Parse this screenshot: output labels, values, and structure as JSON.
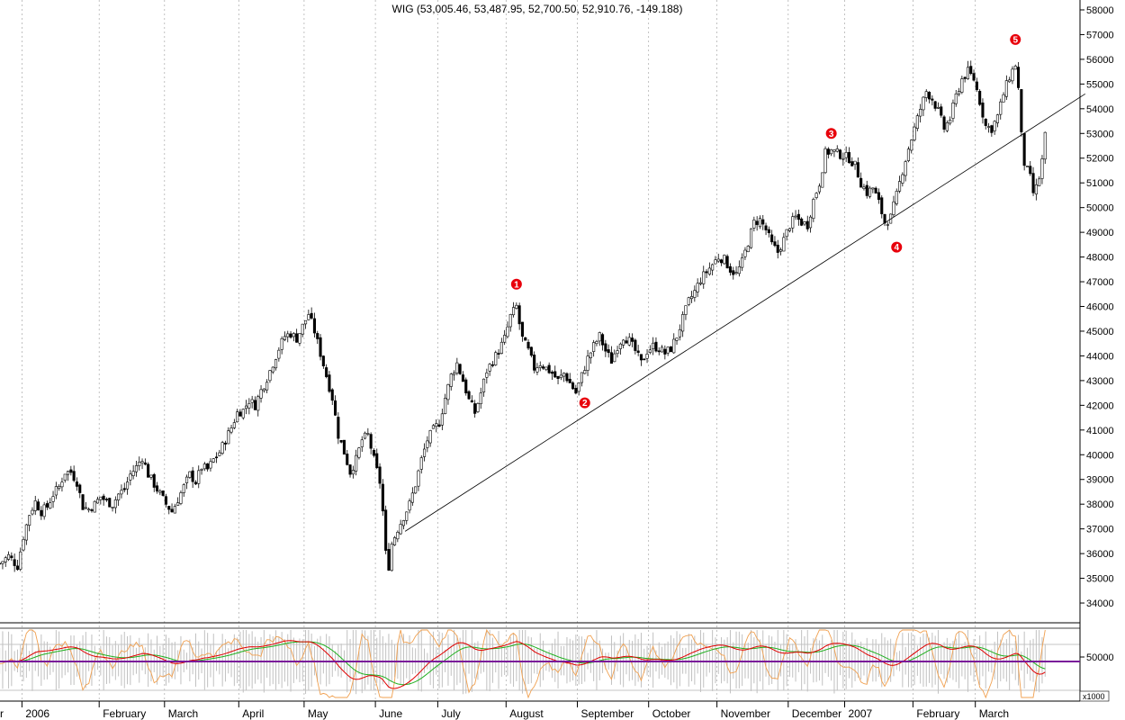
{
  "chart_data": {
    "type": "candlestick",
    "title": "WIG (53,005.46, 53,487.95, 52,700.50, 52,910.76, -149.188)",
    "price_axis": {
      "ylim": [
        33200,
        58400
      ],
      "ticks": [
        34000,
        35000,
        36000,
        37000,
        38000,
        39000,
        40000,
        41000,
        42000,
        43000,
        44000,
        45000,
        46000,
        47000,
        48000,
        49000,
        50000,
        51000,
        52000,
        53000,
        54000,
        55000,
        56000,
        57000,
        58000
      ],
      "tick_labels": [
        "34000",
        "35000",
        "36000",
        "37000",
        "38000",
        "39000",
        "40000",
        "41000",
        "42000",
        "43000",
        "44000",
        "45000",
        "46000",
        "47000",
        "48000",
        "49000",
        "50000",
        "51000",
        "52000",
        "53000",
        "54000",
        "55000",
        "56000",
        "57000",
        "58000"
      ]
    },
    "indicator_axis": {
      "tick_label": "50000",
      "multiplier_label": "x1000"
    },
    "months": [
      {
        "label": "r",
        "bar": 0
      },
      {
        "label": "2006",
        "bar": 8
      },
      {
        "label": "February",
        "bar": 34
      },
      {
        "label": "March",
        "bar": 56
      },
      {
        "label": "April",
        "bar": 81
      },
      {
        "label": "May",
        "bar": 103
      },
      {
        "label": "June",
        "bar": 127
      },
      {
        "label": "July",
        "bar": 148
      },
      {
        "label": "August",
        "bar": 171
      },
      {
        "label": "September",
        "bar": 195
      },
      {
        "label": "October",
        "bar": 219
      },
      {
        "label": "November",
        "bar": 242
      },
      {
        "label": "December",
        "bar": 266
      },
      {
        "label": "2007",
        "bar": 285
      },
      {
        "label": "February",
        "bar": 308
      },
      {
        "label": "March",
        "bar": 329
      }
    ],
    "bars_total": 337,
    "close_path": [
      [
        0,
        35600
      ],
      [
        3,
        35900
      ],
      [
        6,
        35500
      ],
      [
        8,
        36700
      ],
      [
        10,
        37600
      ],
      [
        12,
        38100
      ],
      [
        14,
        37700
      ],
      [
        16,
        37900
      ],
      [
        18,
        38400
      ],
      [
        20,
        38700
      ],
      [
        22,
        39300
      ],
      [
        24,
        39300
      ],
      [
        26,
        38900
      ],
      [
        28,
        37900
      ],
      [
        30,
        37800
      ],
      [
        32,
        38000
      ],
      [
        34,
        38300
      ],
      [
        36,
        38100
      ],
      [
        38,
        38000
      ],
      [
        40,
        38400
      ],
      [
        42,
        38600
      ],
      [
        44,
        39200
      ],
      [
        46,
        39500
      ],
      [
        48,
        39900
      ],
      [
        50,
        39200
      ],
      [
        52,
        38800
      ],
      [
        54,
        38400
      ],
      [
        56,
        38000
      ],
      [
        58,
        37700
      ],
      [
        60,
        38200
      ],
      [
        62,
        38700
      ],
      [
        64,
        39200
      ],
      [
        66,
        38900
      ],
      [
        68,
        39500
      ],
      [
        70,
        39400
      ],
      [
        72,
        39800
      ],
      [
        74,
        40100
      ],
      [
        76,
        40600
      ],
      [
        78,
        41100
      ],
      [
        80,
        41700
      ],
      [
        82,
        41800
      ],
      [
        84,
        42200
      ],
      [
        86,
        42000
      ],
      [
        88,
        42600
      ],
      [
        90,
        43100
      ],
      [
        92,
        43700
      ],
      [
        94,
        44300
      ],
      [
        96,
        44800
      ],
      [
        98,
        44900
      ],
      [
        100,
        44700
      ],
      [
        102,
        45200
      ],
      [
        104,
        45700
      ],
      [
        106,
        45000
      ],
      [
        108,
        44100
      ],
      [
        110,
        43200
      ],
      [
        112,
        42300
      ],
      [
        114,
        40800
      ],
      [
        116,
        40100
      ],
      [
        118,
        39300
      ],
      [
        120,
        39800
      ],
      [
        122,
        40600
      ],
      [
        124,
        40800
      ],
      [
        126,
        39800
      ],
      [
        128,
        38900
      ],
      [
        129,
        37700
      ],
      [
        130,
        36000
      ],
      [
        131,
        35500
      ],
      [
        132,
        36400
      ],
      [
        134,
        37000
      ],
      [
        136,
        37500
      ],
      [
        138,
        38000
      ],
      [
        140,
        38800
      ],
      [
        142,
        39800
      ],
      [
        144,
        40600
      ],
      [
        146,
        41000
      ],
      [
        148,
        41300
      ],
      [
        150,
        42300
      ],
      [
        152,
        43200
      ],
      [
        154,
        43700
      ],
      [
        156,
        43000
      ],
      [
        158,
        42200
      ],
      [
        160,
        41700
      ],
      [
        162,
        42500
      ],
      [
        164,
        43400
      ],
      [
        166,
        43800
      ],
      [
        168,
        44200
      ],
      [
        170,
        44700
      ],
      [
        172,
        45600
      ],
      [
        174,
        46000
      ],
      [
        175,
        45300
      ],
      [
        176,
        44700
      ],
      [
        178,
        44200
      ],
      [
        180,
        43500
      ],
      [
        182,
        43700
      ],
      [
        184,
        43500
      ],
      [
        186,
        43300
      ],
      [
        188,
        43000
      ],
      [
        190,
        43300
      ],
      [
        192,
        42900
      ],
      [
        194,
        42500
      ],
      [
        196,
        43200
      ],
      [
        198,
        43900
      ],
      [
        200,
        44400
      ],
      [
        202,
        44800
      ],
      [
        204,
        44200
      ],
      [
        206,
        43800
      ],
      [
        208,
        44400
      ],
      [
        210,
        44800
      ],
      [
        212,
        44600
      ],
      [
        214,
        44200
      ],
      [
        216,
        43700
      ],
      [
        218,
        44200
      ],
      [
        220,
        44400
      ],
      [
        222,
        44300
      ],
      [
        224,
        44100
      ],
      [
        226,
        44300
      ],
      [
        228,
        44800
      ],
      [
        230,
        45500
      ],
      [
        232,
        46200
      ],
      [
        234,
        46600
      ],
      [
        236,
        47100
      ],
      [
        238,
        47400
      ],
      [
        240,
        47700
      ],
      [
        242,
        48000
      ],
      [
        244,
        47900
      ],
      [
        246,
        47500
      ],
      [
        248,
        47300
      ],
      [
        250,
        47800
      ],
      [
        252,
        48600
      ],
      [
        254,
        49400
      ],
      [
        256,
        49500
      ],
      [
        258,
        49100
      ],
      [
        260,
        48500
      ],
      [
        262,
        48200
      ],
      [
        264,
        48700
      ],
      [
        266,
        49300
      ],
      [
        268,
        49600
      ],
      [
        270,
        49400
      ],
      [
        272,
        49300
      ],
      [
        274,
        50300
      ],
      [
        276,
        51000
      ],
      [
        278,
        52200
      ],
      [
        280,
        52300
      ],
      [
        282,
        52200
      ],
      [
        284,
        52100
      ],
      [
        286,
        52000
      ],
      [
        288,
        51700
      ],
      [
        290,
        51000
      ],
      [
        292,
        50600
      ],
      [
        294,
        50800
      ],
      [
        296,
        50200
      ],
      [
        298,
        49400
      ],
      [
        300,
        49600
      ],
      [
        302,
        50500
      ],
      [
        304,
        51500
      ],
      [
        306,
        52400
      ],
      [
        308,
        53200
      ],
      [
        310,
        54000
      ],
      [
        312,
        54700
      ],
      [
        314,
        54400
      ],
      [
        316,
        53900
      ],
      [
        318,
        53200
      ],
      [
        320,
        53600
      ],
      [
        322,
        54500
      ],
      [
        324,
        55200
      ],
      [
        326,
        55500
      ],
      [
        328,
        55200
      ],
      [
        330,
        54300
      ],
      [
        332,
        53300
      ],
      [
        334,
        53200
      ],
      [
        336,
        53700
      ],
      [
        338,
        54600
      ],
      [
        340,
        55300
      ],
      [
        342,
        55800
      ],
      [
        343,
        54800
      ],
      [
        344,
        52900
      ],
      [
        345,
        51800
      ],
      [
        346,
        51500
      ],
      [
        347,
        51200
      ],
      [
        348,
        50600
      ],
      [
        349,
        50800
      ],
      [
        350,
        51200
      ],
      [
        351,
        51900
      ],
      [
        352,
        52900
      ]
    ],
    "trendline": {
      "from": [
        137,
        36900
      ],
      "to": [
        366,
        54600
      ]
    },
    "wave_labels": [
      {
        "label": "1",
        "bar": 174,
        "price": 46900
      },
      {
        "label": "2",
        "bar": 197,
        "price": 42100
      },
      {
        "label": "3",
        "bar": 280,
        "price": 53000
      },
      {
        "label": "4",
        "bar": 302,
        "price": 48400
      },
      {
        "label": "5",
        "bar": 342,
        "price": 56800
      }
    ],
    "colors": {
      "candle": "#000000",
      "trendline": "#000000",
      "wave_marker": "#e8000b",
      "indicator_fast": "#e00000",
      "indicator_slow": "#20b020",
      "indicator_osc": "#f0a050",
      "indicator_zero": "#7a1a9a",
      "volume": "#c0c0c0",
      "grid": "#a8a8a8"
    }
  }
}
